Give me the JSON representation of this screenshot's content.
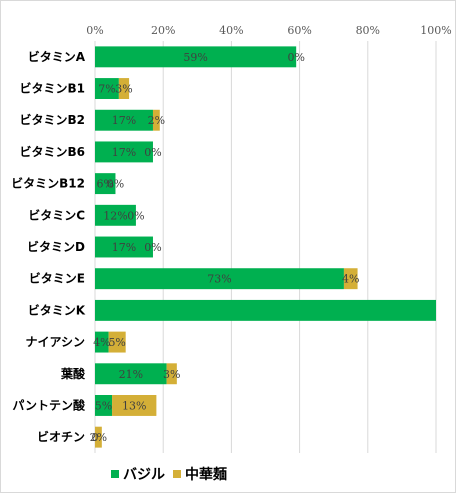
{
  "chart_data": {
    "type": "bar",
    "orientation": "horizontal",
    "stacked": true,
    "categories": [
      "ビタミンA",
      "ビタミンB1",
      "ビタミンB2",
      "ビタミンB6",
      "ビタミンB12",
      "ビタミンC",
      "ビタミンD",
      "ビタミンE",
      "ビタミンK",
      "ナイアシン",
      "葉酸",
      "パントテン酸",
      "ビオチン"
    ],
    "series": [
      {
        "name": "バジル",
        "color": "#00b050",
        "values": [
          59,
          7,
          17,
          17,
          6,
          12,
          17,
          73,
          100,
          4,
          21,
          5,
          0
        ],
        "labels": [
          "59%",
          "7%",
          "17%",
          "17%",
          "6%",
          "12%",
          "17%",
          "73%",
          "",
          "4%",
          "21%",
          "5%",
          "0"
        ]
      },
      {
        "name": "中華麺",
        "color": "#d4af37",
        "values": [
          0,
          3,
          2,
          0,
          0,
          0,
          0,
          4,
          0,
          5,
          3,
          13,
          2
        ],
        "labels": [
          "0%",
          "3%",
          "2%",
          "0%",
          "0%",
          "0%",
          "0%",
          "4%",
          "",
          "5%",
          "3%",
          "13%",
          "2%"
        ]
      }
    ],
    "xlim": [
      0,
      100
    ],
    "xticks": [
      "0%",
      "20%",
      "40%",
      "60%",
      "80%",
      "100%"
    ],
    "grid": true,
    "legend_position": "bottom"
  }
}
